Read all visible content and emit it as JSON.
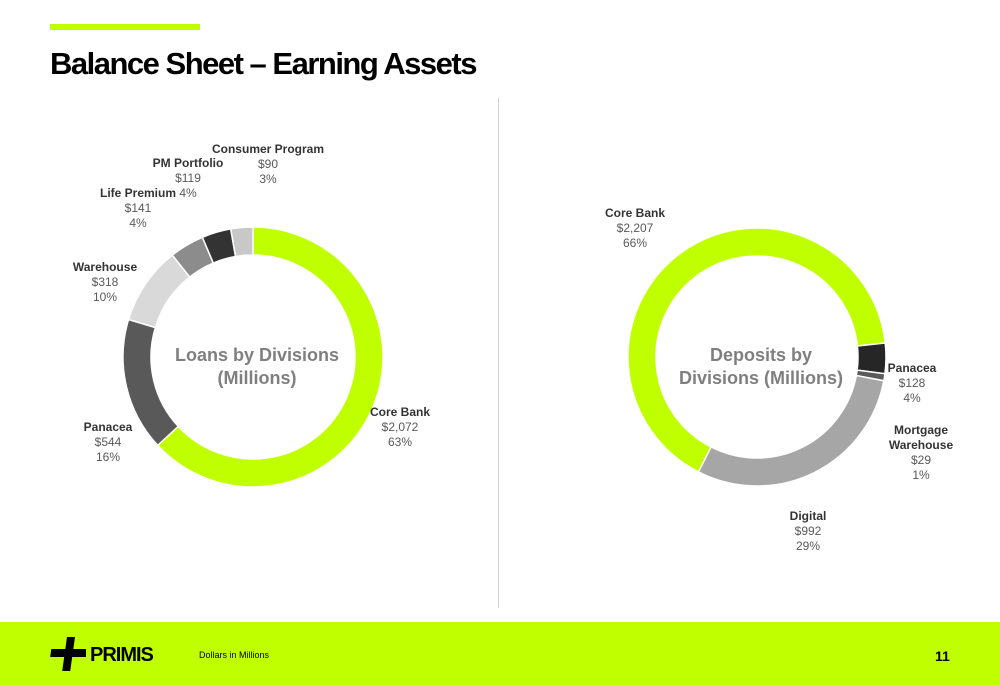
{
  "title": "Balance Sheet – Earning Assets",
  "footer": {
    "brand": "PRIMIS",
    "note": "Dollars in Millions",
    "page": "11"
  },
  "chart_data": [
    {
      "type": "donut",
      "title": "Loans by Divisions (Millions)",
      "categories": [
        "Core Bank",
        "Panacea",
        "Warehouse",
        "Life Premium",
        "PM Portfolio",
        "Consumer Program"
      ],
      "values": [
        2072,
        544,
        318,
        141,
        119,
        90
      ],
      "value_labels": [
        "$2,072",
        "$544",
        "$318",
        "$141",
        "$119",
        "$90"
      ],
      "shares": [
        63,
        16,
        10,
        4,
        4,
        3
      ],
      "share_labels": [
        "63%",
        "16%",
        "10%",
        "4%",
        "4%",
        "3%"
      ],
      "colors": [
        "#c0ff00",
        "#595959",
        "#d9d9d9",
        "#8c8c8c",
        "#333333",
        "#c8c8c8"
      ]
    },
    {
      "type": "donut",
      "title": "Deposits by Divisions (Millions)",
      "categories": [
        "Core Bank",
        "Panacea",
        "Mortgage Warehouse",
        "Digital"
      ],
      "values": [
        2207,
        128,
        29,
        992
      ],
      "value_labels": [
        "$2,207",
        "$128",
        "$29",
        "$992"
      ],
      "shares": [
        66,
        4,
        1,
        29
      ],
      "share_labels": [
        "66%",
        "4%",
        "1%",
        "29%"
      ],
      "colors": [
        "#c0ff00",
        "#262626",
        "#595959",
        "#a6a6a6"
      ]
    }
  ]
}
